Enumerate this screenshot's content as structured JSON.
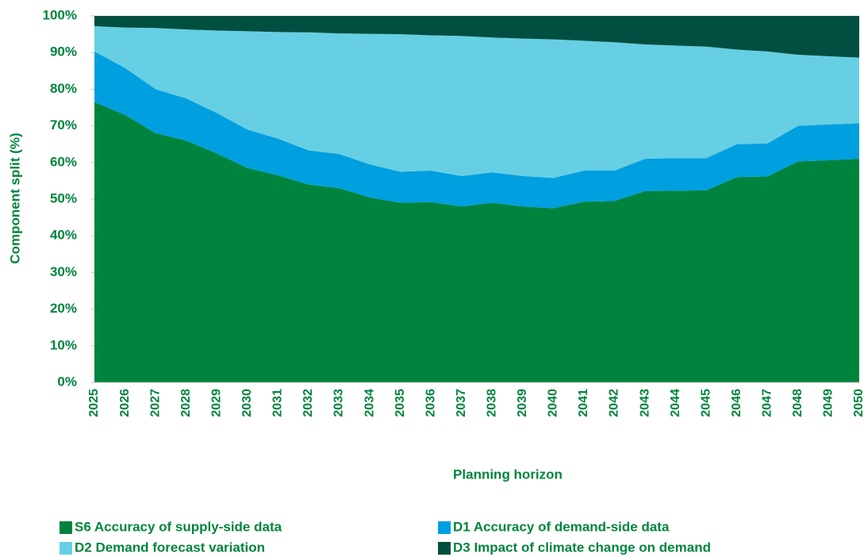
{
  "chart_data": {
    "type": "stacked_area",
    "x_label": "Planning horizon",
    "y_label": "Component split (%)",
    "categories": [
      "2025",
      "2026",
      "2027",
      "2028",
      "2029",
      "2030",
      "2031",
      "2032",
      "2033",
      "2034",
      "2035",
      "2036",
      "2037",
      "2038",
      "2039",
      "2040",
      "2041",
      "2042",
      "2043",
      "2044",
      "2045",
      "2046",
      "2047",
      "2048",
      "2049",
      "2050"
    ],
    "series": [
      {
        "name": "S6 Accuracy of supply-side data",
        "color": "#00843d",
        "values": [
          76.5,
          73,
          68,
          66,
          62.5,
          58.5,
          56.5,
          54,
          53,
          50.5,
          49,
          49.2,
          48,
          49,
          48,
          47.5,
          49.3,
          49.5,
          52.2,
          52.3,
          52.4,
          56,
          56.2,
          60.3,
          60.6,
          61
        ]
      },
      {
        "name": "D1 Accuracy of demand-side data",
        "color": "#009fdf",
        "values": [
          13.8,
          12.8,
          12,
          11.5,
          11,
          10.5,
          10,
          9.3,
          9.3,
          9,
          8.5,
          8.6,
          8.3,
          8.3,
          8.3,
          8.3,
          8.5,
          8.3,
          8.8,
          8.9,
          8.8,
          9,
          9,
          9.7,
          9.8,
          9.7
        ]
      },
      {
        "name": "D2 Demand forecast variation",
        "color": "#66cfe3",
        "values": [
          6.9,
          11,
          16.7,
          18.8,
          22.5,
          26.8,
          29.1,
          32.2,
          32.9,
          35.6,
          37.5,
          36.9,
          38.2,
          36.8,
          37.5,
          37.8,
          35.4,
          35,
          31.2,
          30.7,
          30.4,
          25.8,
          25.1,
          19.4,
          18.6,
          17.9
        ]
      },
      {
        "name": "D3 Impact of climate change on demand",
        "color": "#004f40",
        "values": [
          2.8,
          3.2,
          3.3,
          3.7,
          4,
          4.2,
          4.4,
          4.5,
          4.8,
          4.9,
          5,
          5.3,
          5.5,
          5.9,
          6.2,
          6.4,
          6.8,
          7.2,
          7.8,
          8.1,
          8.4,
          9.2,
          9.7,
          10.6,
          11,
          11.4
        ]
      }
    ],
    "ylim": [
      0,
      100
    ],
    "yticks": [
      {
        "value": 0,
        "label": "0%"
      },
      {
        "value": 10,
        "label": "10%"
      },
      {
        "value": 20,
        "label": "20%"
      },
      {
        "value": 30,
        "label": "30%"
      },
      {
        "value": 40,
        "label": "40%"
      },
      {
        "value": 50,
        "label": "50%"
      },
      {
        "value": 60,
        "label": "60%"
      },
      {
        "value": 70,
        "label": "70%"
      },
      {
        "value": 80,
        "label": "80%"
      },
      {
        "value": 90,
        "label": "90%"
      },
      {
        "value": 100,
        "label": "100%"
      }
    ],
    "legend": "bottom"
  }
}
